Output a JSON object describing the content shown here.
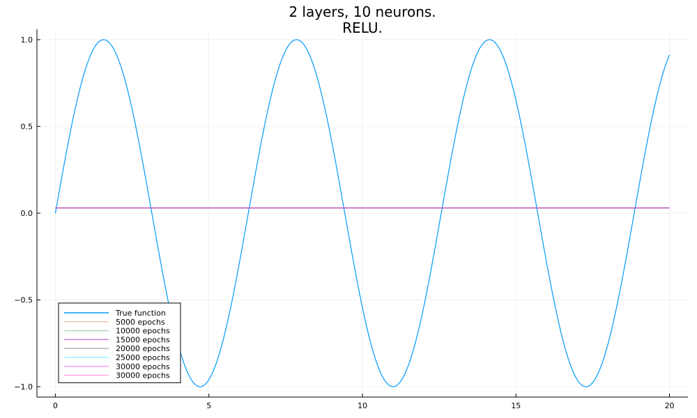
{
  "chart_data": {
    "type": "line",
    "title_lines": [
      "2 layers, 10 neurons.",
      "RELU."
    ],
    "xlabel": "",
    "ylabel": "",
    "xlim": [
      -0.6,
      20.6
    ],
    "ylim": [
      -1.06,
      1.06
    ],
    "x_ticks": [
      0,
      5,
      10,
      15,
      20
    ],
    "x_tick_labels": [
      "0",
      "5",
      "10",
      "15",
      "20"
    ],
    "y_ticks": [
      -1.0,
      -0.5,
      0.0,
      0.5,
      1.0
    ],
    "y_tick_labels": [
      "−1.0",
      "−0.5",
      "0.0",
      "0.5",
      "1.0"
    ],
    "grid": true,
    "legend_position": "bottom-left",
    "series": [
      {
        "name": "True function",
        "color": "#009af9",
        "kind": "sine",
        "x_range": [
          0,
          20
        ],
        "alpha": 1.0
      },
      {
        "name": "5000 epochs",
        "color": "#e26f46",
        "kind": "constant",
        "value": 0.03,
        "x_range": [
          0,
          20
        ],
        "alpha": 0.4
      },
      {
        "name": "10000 epochs",
        "color": "#3da44d",
        "kind": "constant",
        "value": 0.03,
        "x_range": [
          0,
          20
        ],
        "alpha": 0.4
      },
      {
        "name": "15000 epochs",
        "color": "#c271d2",
        "kind": "constant",
        "value": 0.03,
        "x_range": [
          0,
          20
        ],
        "alpha": 0.9
      },
      {
        "name": "20000 epochs",
        "color": "#444444",
        "kind": "constant",
        "value": 0.03,
        "x_range": [
          0,
          20
        ],
        "alpha": 0.4
      },
      {
        "name": "25000 epochs",
        "color": "#00e5ff",
        "kind": "constant",
        "value": 0.03,
        "x_range": [
          0,
          20
        ],
        "alpha": 0.4
      },
      {
        "name": "30000 epochs",
        "color": "#f000e0",
        "kind": "constant",
        "value": 0.03,
        "x_range": [
          0,
          20
        ],
        "alpha": 0.4
      },
      {
        "name": "30000 epochs",
        "color": "#ff4fc4",
        "kind": "constant",
        "value": 0.03,
        "x_range": [
          0,
          20
        ],
        "alpha": 0.5
      }
    ]
  }
}
